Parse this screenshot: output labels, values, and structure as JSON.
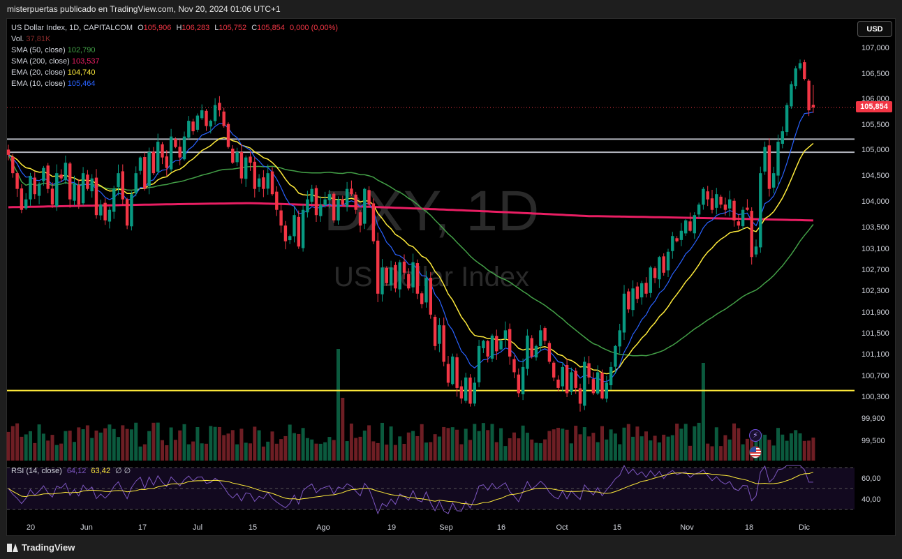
{
  "header": {
    "attribution": "misterpuertas publicado en TradingView.com, Nov 20, 2024 01:06 UTC+1"
  },
  "legend": {
    "symbol": "US Dollar Index, 1D, CAPITALCOM",
    "o_label": "O",
    "o_value": "105,906",
    "h_label": "H",
    "h_value": "106,283",
    "l_label": "L",
    "l_value": "105,752",
    "c_label": "C",
    "c_value": "105,854",
    "change": "0,000 (0,00%)",
    "vol_label": "Vol.",
    "vol_value": "37,81K",
    "sma50_label": "SMA (50, close)",
    "sma50_value": "102,790",
    "sma200_label": "SMA (200, close)",
    "sma200_value": "103,537",
    "ema20_label": "EMA (20, close)",
    "ema20_value": "104,740",
    "ema10_label": "EMA (10, close)",
    "ema10_value": "105,464"
  },
  "currency_button": "USD",
  "last_price_tag": "105,854",
  "watermark": {
    "ticker": "DXY, 1D",
    "name": "US Dollar Index"
  },
  "rsi_legend": {
    "label": "RSI (14, close)",
    "rsi": "64,12",
    "ma": "63,42",
    "extra": "∅  ∅"
  },
  "brand": "TradingView",
  "colors": {
    "up": "#089981",
    "down": "#f23645",
    "sma50": "#43a047",
    "sma200": "#e91e63",
    "ema20": "#ffeb3b",
    "ema10": "#2962ff",
    "rsi": "#7e57c2"
  },
  "icons": [
    "lightning-icon",
    "us-flag-icon"
  ],
  "chart_data": {
    "type": "candlestick",
    "title": "US Dollar Index, 1D, CAPITALCOM",
    "price_axis": {
      "ticks": [
        "107,000",
        "106,500",
        "106,000",
        "105,500",
        "105,000",
        "104,500",
        "104,000",
        "103,500",
        "103,100",
        "102,700",
        "102,300",
        "101,900",
        "101,500",
        "101,100",
        "100,700",
        "100,300",
        "99,900",
        "99,500"
      ]
    },
    "time_axis": {
      "ticks": [
        "20",
        "Jun",
        "17",
        "Jul",
        "15",
        "Ago",
        "19",
        "Sep",
        "16",
        "Oct",
        "15",
        "Nov",
        "18",
        "Dic"
      ]
    },
    "rsi_axis": {
      "ticks": [
        "60,00",
        "40,00"
      ]
    },
    "horizontal_levels": [
      {
        "value": 105.25,
        "color": "#b2b5be"
      },
      {
        "value": 105.0,
        "color": "#b2b5be"
      },
      {
        "value": 100.45,
        "color": "#ffeb3b"
      }
    ],
    "last_price": 105.854,
    "closes": [
      104.95,
      104.6,
      104.3,
      103.9,
      104.1,
      104.55,
      104.2,
      104.4,
      104.7,
      104.3,
      104.0,
      104.6,
      104.5,
      104.8,
      104.1,
      104.4,
      104.0,
      104.6,
      104.3,
      104.5,
      103.8,
      104.0,
      103.7,
      103.9,
      104.3,
      104.6,
      104.1,
      103.6,
      104.2,
      104.6,
      104.9,
      104.3,
      105.0,
      104.6,
      105.2,
      104.9,
      104.7,
      105.3,
      105.1,
      104.9,
      105.3,
      105.6,
      105.4,
      105.7,
      105.8,
      105.5,
      105.6,
      105.9,
      105.8,
      105.5,
      105.1,
      104.8,
      105.0,
      104.5,
      104.9,
      104.8,
      104.3,
      104.5,
      104.3,
      104.6,
      104.2,
      103.9,
      103.6,
      103.3,
      103.4,
      103.8,
      103.2,
      103.9,
      104.1,
      104.3,
      103.8,
      104.0,
      104.1,
      104.2,
      103.7,
      104.1,
      104.0,
      104.3,
      104.2,
      103.9,
      103.6,
      104.3,
      104.0,
      103.3,
      102.3,
      102.8,
      102.5,
      102.8,
      102.4,
      102.9,
      102.7,
      102.4,
      102.9,
      102.3,
      102.1,
      102.6,
      101.9,
      101.3,
      101.7,
      101.0,
      100.6,
      101.1,
      100.5,
      100.3,
      100.7,
      100.2,
      100.6,
      101.3,
      101.4,
      101.1,
      101.5,
      101.2,
      101.4,
      101.6,
      101.1,
      100.8,
      100.4,
      100.9,
      101.5,
      101.1,
      101.3,
      101.6,
      101.4,
      101.0,
      100.7,
      100.5,
      100.9,
      100.4,
      100.8,
      100.5,
      100.2,
      101.0,
      100.7,
      100.4,
      100.8,
      100.3,
      100.6,
      100.9,
      101.3,
      101.6,
      102.3,
      102.0,
      102.4,
      102.2,
      102.5,
      102.3,
      102.8,
      102.6,
      103.0,
      102.7,
      103.1,
      103.4,
      103.3,
      103.5,
      103.7,
      103.5,
      103.8,
      104.0,
      104.3,
      104.1,
      103.9,
      104.2,
      104.0,
      103.9,
      104.1,
      103.7,
      103.6,
      103.9,
      103.9,
      103.0,
      103.2,
      104.6,
      105.1,
      104.3,
      104.6,
      105.2,
      105.4,
      105.9,
      106.3,
      106.6,
      106.7,
      106.4,
      105.8,
      105.85
    ],
    "series": [
      {
        "name": "SMA (50, close)",
        "last": 102.79
      },
      {
        "name": "SMA (200, close)",
        "last": 103.537
      },
      {
        "name": "EMA (20, close)",
        "last": 104.74
      },
      {
        "name": "EMA (10, close)",
        "last": 105.464
      }
    ]
  }
}
